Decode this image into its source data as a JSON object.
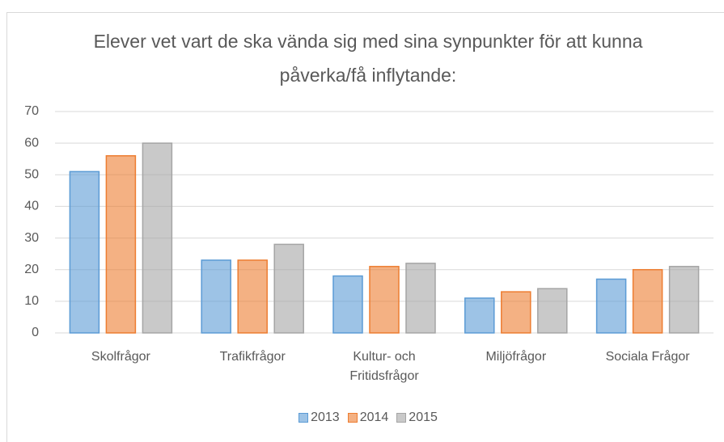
{
  "chart_data": {
    "type": "bar",
    "title": "Elever vet vart de ska vända sig med sina synpunkter för att kunna påverka/få inflytande:",
    "categories": [
      "Skolfrågor",
      "Trafikfrågor",
      "Kultur- och Fritidsfrågor",
      "Miljöfrågor",
      "Sociala Frågor"
    ],
    "series": [
      {
        "name": "2013",
        "color": "#5b9bd5",
        "values": [
          51,
          23,
          18,
          11,
          17
        ]
      },
      {
        "name": "2014",
        "color": "#ed7d31",
        "values": [
          56,
          23,
          21,
          13,
          20
        ]
      },
      {
        "name": "2015",
        "color": "#a5a5a5",
        "values": [
          60,
          28,
          22,
          14,
          21
        ]
      }
    ],
    "ylim": [
      0,
      70
    ],
    "yticks": [
      0,
      10,
      20,
      30,
      40,
      50,
      60,
      70
    ],
    "grid": true,
    "legend": "bottom"
  }
}
